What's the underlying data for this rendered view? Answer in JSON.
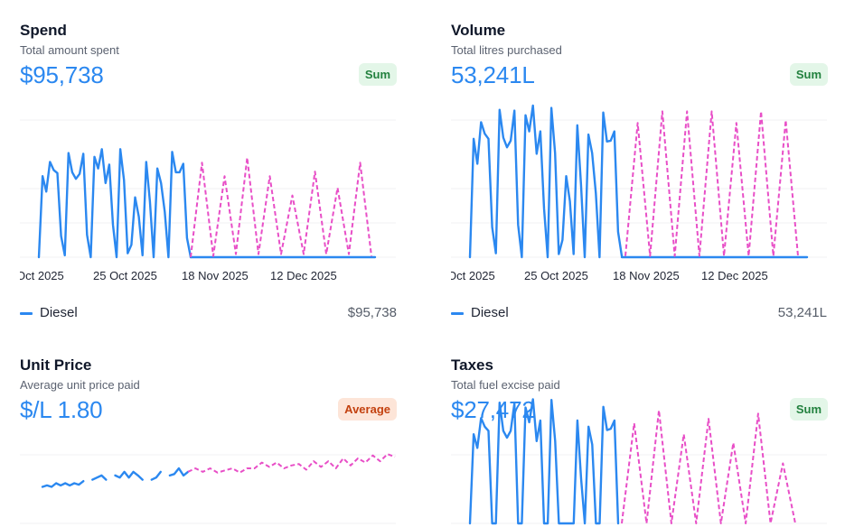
{
  "colors": {
    "actual": "#2b88f0",
    "forecast": "#e84fc7",
    "grid": "#f1f1f3",
    "sum_badge_bg": "#e3f6e8",
    "sum_badge_text": "#22813e",
    "avg_badge_bg": "#fde5d8",
    "avg_badge_text": "#c3410f"
  },
  "cards": {
    "spend": {
      "title": "Spend",
      "subtitle": "Total amount spent",
      "value": "$95,738",
      "badge": "Sum",
      "legend_label": "Diesel",
      "legend_value": "$95,738"
    },
    "volume": {
      "title": "Volume",
      "subtitle": "Total litres purchased",
      "value": "53,241L",
      "badge": "Sum",
      "legend_label": "Diesel",
      "legend_value": "53,241L"
    },
    "unit_price": {
      "title": "Unit Price",
      "subtitle": "Average unit price paid",
      "value": "$/L 1.80",
      "badge": "Average"
    },
    "taxes": {
      "title": "Taxes",
      "subtitle": "Total fuel excise paid",
      "value": "$27,472",
      "badge": "Sum"
    }
  },
  "chart_data": [
    {
      "type": "line",
      "title": "Spend",
      "x_tick_labels": [
        "Oct 2025",
        "25 Oct 2025",
        "18 Nov 2025",
        "12 Dec 2025"
      ],
      "ylim": [
        0,
        4
      ],
      "grid": true,
      "legend": [
        {
          "name": "Diesel",
          "value": "$95,738"
        }
      ],
      "series": [
        {
          "name": "Diesel",
          "style": "solid",
          "values": [
            0,
            2.1,
            1.7,
            2.47,
            2.26,
            2.18,
            0.55,
            0.05,
            2.7,
            2.2,
            2.03,
            2.16,
            2.68,
            0.58,
            0,
            2.6,
            2.3,
            2.8,
            1.92,
            2.4,
            0.84,
            0,
            2.8,
            2.0,
            0.1,
            0.32,
            1.55,
            1.05,
            0.05,
            2.47,
            1.44,
            0,
            2.3,
            1.92,
            1.18,
            0,
            2.73,
            2.2,
            2.2,
            2.42,
            0.5,
            0,
            0,
            0,
            0,
            0,
            0,
            0,
            0,
            0,
            0,
            0,
            0,
            0,
            0,
            0,
            0
          ]
        },
        {
          "name": "Forecast",
          "style": "dashed",
          "values": [
            0,
            2.45,
            0.03,
            2.1,
            0.08,
            2.58,
            0.08,
            2.1,
            0.08,
            1.6,
            0.08,
            2.22,
            0.08,
            1.8,
            0.08,
            2.45,
            0.03
          ]
        }
      ]
    },
    {
      "type": "line",
      "title": "Volume",
      "x_tick_labels": [
        "Oct 2025",
        "25 Oct 2025",
        "18 Nov 2025",
        "12 Dec 2025"
      ],
      "ylim": [
        0,
        4
      ],
      "grid": true,
      "legend": [
        {
          "name": "Diesel",
          "value": "53,241L"
        }
      ],
      "series": [
        {
          "name": "Diesel",
          "style": "solid",
          "values": [
            0,
            3.07,
            2.42,
            3.5,
            3.2,
            3.07,
            0.78,
            0.1,
            3.82,
            3.1,
            2.85,
            3.02,
            3.8,
            0.84,
            0,
            3.68,
            3.26,
            3.93,
            2.68,
            3.26,
            1.26,
            0,
            3.87,
            2.7,
            0.08,
            0.45,
            2.1,
            1.45,
            0.08,
            3.42,
            1.88,
            0,
            3.18,
            2.7,
            1.66,
            0,
            3.75,
            3.0,
            3.02,
            3.26,
            0.66,
            0.03
          ]
        },
        {
          "name": "Forecast",
          "style": "dashed",
          "values": [
            0.03,
            3.48,
            0.03,
            3.78,
            0.03,
            3.78,
            0.03,
            3.78,
            0.03,
            3.48,
            0.03,
            3.78,
            0.03,
            3.55,
            0.03
          ]
        }
      ]
    },
    {
      "type": "line",
      "title": "Unit Price",
      "ylim": [
        0,
        2
      ],
      "grid": true,
      "series": [
        {
          "name": "Diesel",
          "style": "solid",
          "values": [
            1.5,
            1.52,
            1.5,
            1.55,
            1.52,
            1.55,
            1.52,
            1.55,
            1.53,
            1.58,
            null,
            1.6,
            1.63,
            1.66,
            1.6,
            null,
            1.66,
            1.63,
            1.71,
            1.63,
            1.71,
            1.66,
            1.6,
            null,
            1.6,
            1.63,
            1.71,
            null,
            1.66,
            1.68,
            1.76,
            1.66,
            1.71
          ]
        },
        {
          "name": "Forecast",
          "style": "dashed",
          "values": [
            1.71,
            1.76,
            1.71,
            1.76,
            1.7,
            1.73,
            1.76,
            1.7,
            1.76,
            1.76,
            1.84,
            1.78,
            1.84,
            1.76,
            1.8,
            1.82,
            1.74,
            1.86,
            1.78,
            1.86,
            1.76,
            1.9,
            1.8,
            1.9,
            1.84,
            1.94,
            1.86,
            1.96,
            1.92
          ]
        }
      ]
    },
    {
      "type": "line",
      "title": "Taxes",
      "ylim": [
        0,
        4
      ],
      "grid": true,
      "series": [
        {
          "name": "Diesel",
          "style": "solid",
          "values": [
            0,
            2.6,
            2.2,
            3.07,
            2.82,
            2.7,
            0,
            0,
            3.52,
            2.7,
            2.5,
            2.7,
            3.5,
            0,
            0,
            3.38,
            2.95,
            3.62,
            2.4,
            3.0,
            0,
            0,
            3.6,
            2.4,
            0,
            0,
            0,
            0,
            0,
            3.0,
            1.3,
            0,
            2.82,
            2.3,
            0,
            0,
            3.4,
            2.72,
            2.76,
            3.0,
            0,
            0
          ]
        },
        {
          "name": "Forecast",
          "style": "dashed",
          "values": [
            0,
            2.92,
            0,
            3.3,
            0,
            2.6,
            0,
            3.05,
            0,
            2.35,
            0,
            3.2,
            0,
            1.75,
            0
          ]
        }
      ]
    }
  ]
}
